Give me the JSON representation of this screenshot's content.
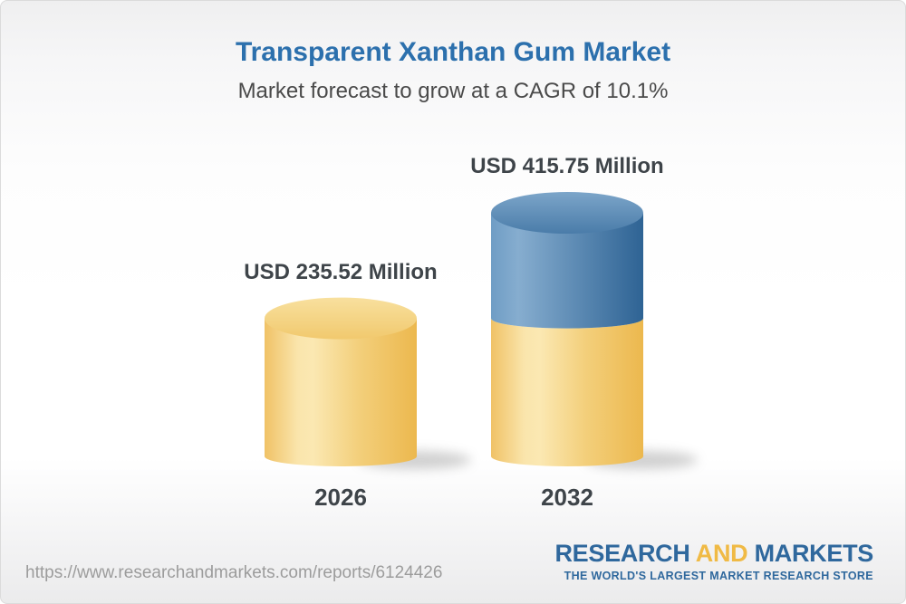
{
  "header": {
    "title": "Transparent Xanthan Gum Market",
    "subtitle": "Market forecast to grow at a CAGR of 10.1%"
  },
  "bars": [
    {
      "year": "2026",
      "value_label": "USD 235.52 Million",
      "value": 235.52
    },
    {
      "year": "2032",
      "value_label": "USD 415.75 Million",
      "value": 415.75
    }
  ],
  "chart_data": {
    "type": "bar",
    "variant": "3d-cylinder",
    "categories": [
      "2026",
      "2032"
    ],
    "values": [
      235.52,
      415.75
    ],
    "unit": "USD Million",
    "value_labels": [
      "USD 235.52 Million",
      "USD 415.75 Million"
    ],
    "title": "Transparent Xanthan Gum Market",
    "subtitle": "Market forecast to grow at a CAGR of 10.1%",
    "cagr_percent": 10.1,
    "legend": false,
    "grid": false,
    "axes": false,
    "notes": "2032 cylinder is stacked: gold base equals 2026 value, blue top segment is forecast growth"
  },
  "footer": {
    "url": "https://www.researchandmarkets.com/reports/6124426",
    "logo": {
      "research": "RESEARCH",
      "and": "AND",
      "markets": "MARKETS",
      "tagline": "THE WORLD'S LARGEST MARKET RESEARCH STORE"
    }
  },
  "colors": {
    "title_blue": "#2C70AD",
    "subtitle_gray": "#4A4A4A",
    "label_dark": "#3E4449",
    "bar_gold": "#F2C565",
    "bar_gold_light": "#FBE8B2",
    "bar_gold_dark": "#ECB84E",
    "bar_blue": "#4F81AE",
    "bar_blue_light": "#86ADCF",
    "bar_blue_dark": "#2E6394",
    "url_gray": "#9C9C9C",
    "logo_blue": "#2F689D",
    "logo_gold": "#F0BA45"
  }
}
